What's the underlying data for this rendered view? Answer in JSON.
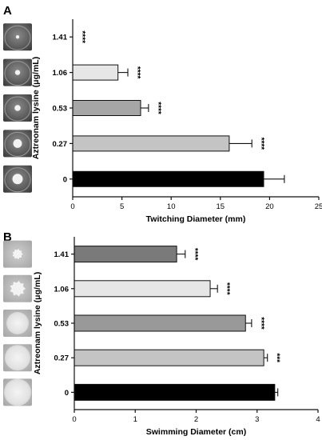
{
  "chart_data": [
    {
      "type": "bar",
      "orientation": "horizontal",
      "panel_label": "A",
      "categories": [
        "1.41",
        "1.06",
        "0.53",
        "0.27",
        "0"
      ],
      "values": [
        0,
        4.6,
        6.9,
        15.9,
        19.4
      ],
      "errors": [
        0,
        1.0,
        0.8,
        2.3,
        2.1
      ],
      "bar_colors": [
        "#ffffff",
        "#e6e6e6",
        "#a6a6a6",
        "#c4c4c4",
        "#000000"
      ],
      "significance": [
        "****",
        "****",
        "****",
        "****",
        ""
      ],
      "xlabel": "Twitching Diameter (mm)",
      "ylabel": "Aztreonam lysine (μg/mL)",
      "xlim": [
        0,
        25
      ],
      "xticks": [
        "0",
        "5",
        "10",
        "15",
        "20",
        "25"
      ],
      "thumbnail_style": "plate",
      "grid": false
    },
    {
      "type": "bar",
      "orientation": "horizontal",
      "panel_label": "B",
      "categories": [
        "1.41",
        "1.06",
        "0.53",
        "0.27",
        "0"
      ],
      "values": [
        1.68,
        2.23,
        2.81,
        3.11,
        3.29
      ],
      "errors": [
        0.14,
        0.12,
        0.1,
        0.06,
        0.05
      ],
      "bar_colors": [
        "#7a7a7a",
        "#e6e6e6",
        "#999999",
        "#c4c4c4",
        "#000000"
      ],
      "significance": [
        "****",
        "****",
        "****",
        "***",
        ""
      ],
      "xlabel": "Swimming Diameter (cm)",
      "ylabel": "Aztreonam lysine (μg/mL)",
      "xlim": [
        0,
        4
      ],
      "xticks": [
        "0",
        "1",
        "2",
        "3",
        "4"
      ],
      "thumbnail_style": "colony",
      "grid": false
    }
  ]
}
